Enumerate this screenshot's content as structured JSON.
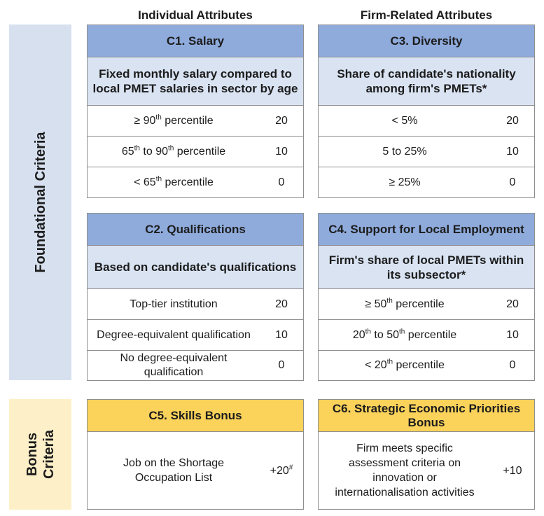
{
  "column_headers": {
    "individual": "Individual Attributes",
    "firm": "Firm-Related Attributes"
  },
  "sections": {
    "foundational": "Foundational Criteria",
    "bonus_line1": "Bonus",
    "bonus_line2": "Criteria"
  },
  "c1": {
    "title": "C1. Salary",
    "subtitle": "Fixed monthly salary compared to local PMET salaries in sector by age",
    "rows": [
      {
        "pre": "≥ 90",
        "sup": "th",
        "post": " percentile",
        "points": "20"
      },
      {
        "pre": "65",
        "sup": "th",
        "mid": " to 90",
        "sup2": "th",
        "post": " percentile",
        "points": "10"
      },
      {
        "pre": "< 65",
        "sup": "th",
        "post": " percentile",
        "points": "0"
      }
    ]
  },
  "c2": {
    "title": "C2. Qualifications",
    "subtitle": "Based on candidate's qualifications",
    "rows": [
      {
        "label": "Top-tier institution",
        "points": "20"
      },
      {
        "label": "Degree-equivalent qualification",
        "points": "10"
      },
      {
        "label": "No degree-equivalent qualification",
        "points": "0"
      }
    ]
  },
  "c3": {
    "title": "C3. Diversity",
    "subtitle": "Share of candidate's nationality among firm's PMETs*",
    "rows": [
      {
        "label": "< 5%",
        "points": "20"
      },
      {
        "label": "5 to 25%",
        "points": "10"
      },
      {
        "label": "≥ 25%",
        "points": "0"
      }
    ]
  },
  "c4": {
    "title": "C4. Support for Local Employment",
    "subtitle": "Firm's share of local PMETs within its subsector*",
    "rows": [
      {
        "pre": "≥ 50",
        "sup": "th",
        "post": " percentile",
        "points": "20"
      },
      {
        "pre": "20",
        "sup": "th",
        "mid": " to 50",
        "sup2": "th",
        "post": " percentile",
        "points": "10"
      },
      {
        "pre": "< 20",
        "sup": "th",
        "post": " percentile",
        "points": "0"
      }
    ]
  },
  "c5": {
    "title": "C5. Skills Bonus",
    "label": "Job on the Shortage Occupation List",
    "points": "+20",
    "points_sup": "#"
  },
  "c6": {
    "title": "C6. Strategic Economic Priorities Bonus",
    "label": "Firm meets specific assessment criteria on innovation or internationalisation activities",
    "points": "+10"
  },
  "colors": {
    "header_blue": "#8fabdc",
    "subheader_blue": "#d9e3f2",
    "side_blue": "#d6e0ef",
    "header_gold": "#fbd25a",
    "side_gold": "#fdf0c8"
  }
}
